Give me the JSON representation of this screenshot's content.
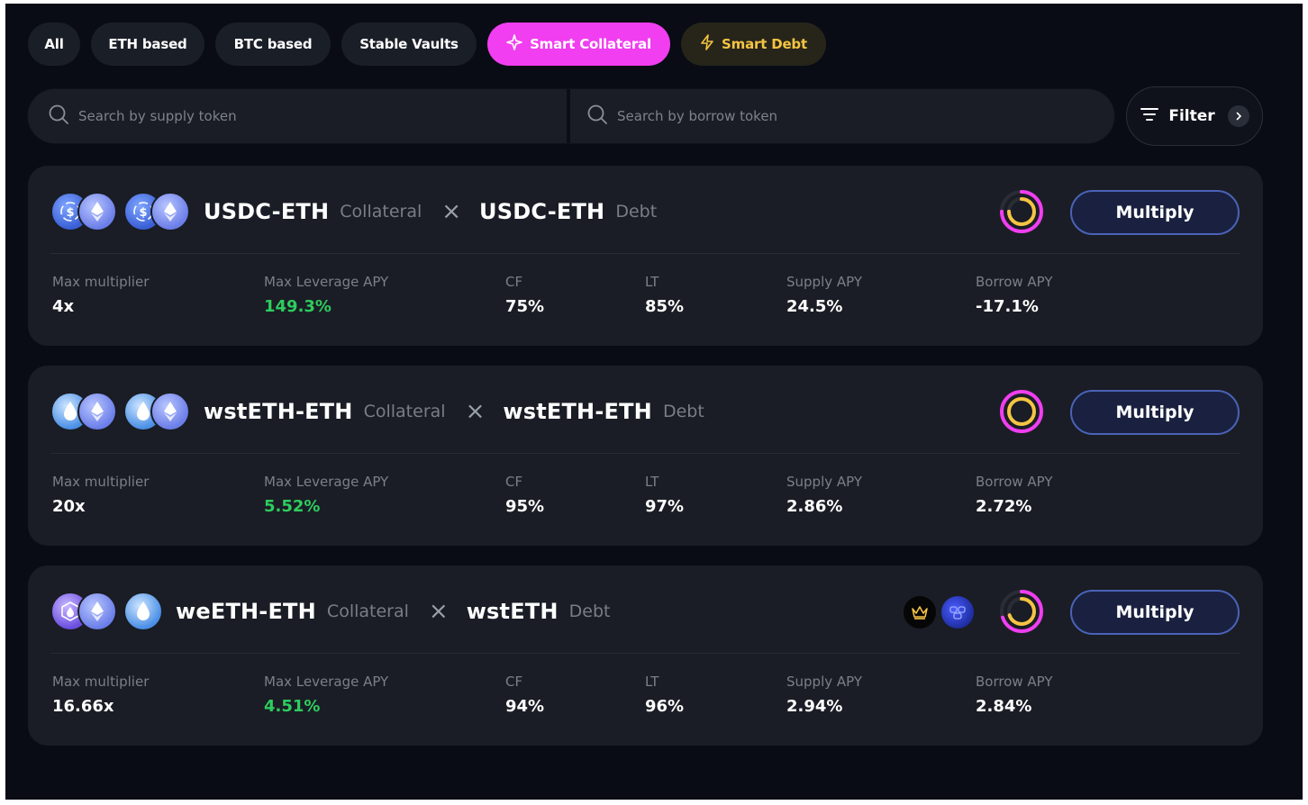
{
  "tabs": [
    {
      "label": "All"
    },
    {
      "label": "ETH based"
    },
    {
      "label": "BTC based"
    },
    {
      "label": "Stable Vaults"
    },
    {
      "label": "Smart Collateral",
      "icon": "sparkle-icon",
      "active": true
    },
    {
      "label": "Smart Debt",
      "icon": "lightning-icon"
    }
  ],
  "search": {
    "supply_placeholder": "Search by supply token",
    "borrow_placeholder": "Search by borrow token"
  },
  "filter": {
    "label": "Filter",
    "icon": "filter-icon"
  },
  "colors": {
    "accent_pink": "#f03ef0",
    "smart_debt_text": "#f5c443",
    "positive_green": "#2ecc5e",
    "ring_pink": "#f03ef0",
    "ring_yellow": "#f5c443",
    "button_border": "#4a63b8"
  },
  "stat_labels": {
    "max_multiplier": "Max multiplier",
    "max_leverage_apy": "Max Leverage APY",
    "cf": "CF",
    "lt": "LT",
    "supply_apy": "Supply APY",
    "borrow_apy": "Borrow APY"
  },
  "vaults": [
    {
      "collateral_name": "USDC-ETH",
      "collateral_label": "Collateral",
      "debt_name": "USDC-ETH",
      "debt_label": "Debt",
      "separator": "×",
      "action_label": "Multiply",
      "ring_fill": 0.75,
      "max_multiplier": "4x",
      "max_leverage_apy": "149.3%",
      "cf": "75%",
      "lt": "85%",
      "supply_apy": "24.5%",
      "borrow_apy": "-17.1%"
    },
    {
      "collateral_name": "wstETH-ETH",
      "collateral_label": "Collateral",
      "debt_name": "wstETH-ETH",
      "debt_label": "Debt",
      "separator": "×",
      "action_label": "Multiply",
      "ring_fill": 1.0,
      "max_multiplier": "20x",
      "max_leverage_apy": "5.52%",
      "cf": "95%",
      "lt": "97%",
      "supply_apy": "2.86%",
      "borrow_apy": "2.72%"
    },
    {
      "collateral_name": "weETH-ETH",
      "collateral_label": "Collateral",
      "debt_name": "wstETH",
      "debt_label": "Debt",
      "separator": "×",
      "action_label": "Multiply",
      "ring_fill": 0.7,
      "max_multiplier": "16.66x",
      "max_leverage_apy": "4.51%",
      "cf": "94%",
      "lt": "96%",
      "supply_apy": "2.94%",
      "borrow_apy": "2.84%",
      "badges": [
        "crown-icon",
        "blue-protocol-icon"
      ]
    }
  ]
}
